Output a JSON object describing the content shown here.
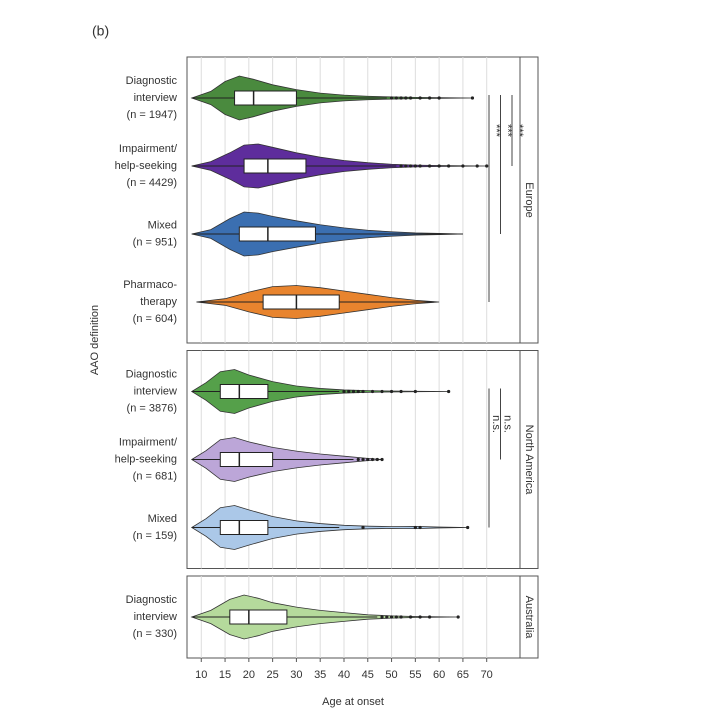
{
  "chart_data": {
    "type": "violin",
    "panel_label": "(b)",
    "y_label": "AAO definition",
    "x_label": "Age at onset",
    "xlim": [
      7,
      77
    ],
    "xticks": [
      10,
      15,
      20,
      25,
      30,
      35,
      40,
      45,
      50,
      55,
      60,
      65,
      70
    ],
    "grid": true,
    "facets": [
      {
        "name": "Europe",
        "groups": [
          {
            "label": [
              "Diagnostic",
              "interview"
            ],
            "n_label": "(n = 1947)",
            "color": "#4a8a3e",
            "low": 8,
            "q1": 17,
            "median": 21,
            "q3": 30,
            "high": 49,
            "outliers": [
              50,
              51,
              52,
              53,
              54,
              56,
              58,
              60,
              67
            ],
            "density_x": [
              8,
              12,
              15,
              18,
              21,
              25,
              30,
              35,
              40,
              45,
              50,
              55,
              60,
              67
            ],
            "density": [
              0,
              0.3,
              0.75,
              1,
              0.85,
              0.6,
              0.38,
              0.22,
              0.13,
              0.08,
              0.05,
              0.03,
              0.015,
              0
            ]
          },
          {
            "label": [
              "Impairment/",
              "help-seeking"
            ],
            "n_label": "(n = 4429)",
            "color": "#5e2d9c",
            "low": 8,
            "q1": 19,
            "median": 24,
            "q3": 32,
            "high": 51,
            "outliers": [
              52,
              53,
              54,
              55,
              56,
              58,
              60,
              62,
              65,
              68,
              70
            ],
            "density_x": [
              8,
              12,
              16,
              19,
              22,
              25,
              30,
              35,
              40,
              45,
              50,
              55,
              60,
              70
            ],
            "density": [
              0,
              0.2,
              0.6,
              0.95,
              1,
              0.85,
              0.6,
              0.4,
              0.25,
              0.15,
              0.08,
              0.04,
              0.02,
              0
            ]
          },
          {
            "label": [
              "Mixed"
            ],
            "n_label": "(n = 951)",
            "color": "#3b6fb1",
            "low": 8,
            "q1": 18,
            "median": 24,
            "q3": 34,
            "high": 65,
            "outliers": [],
            "density_x": [
              8,
              12,
              16,
              19,
              22,
              25,
              30,
              35,
              40,
              45,
              50,
              55,
              60,
              65
            ],
            "density": [
              0,
              0.2,
              0.7,
              1,
              0.95,
              0.8,
              0.6,
              0.42,
              0.28,
              0.17,
              0.1,
              0.05,
              0.03,
              0
            ]
          },
          {
            "label": [
              "Pharmaco-",
              "therapy"
            ],
            "n_label": "(n = 604)",
            "color": "#e8842e",
            "low": 9,
            "q1": 23,
            "median": 30,
            "q3": 39,
            "high": 59,
            "outliers": [],
            "density_x": [
              9,
              15,
              20,
              25,
              30,
              35,
              40,
              45,
              50,
              55,
              60
            ],
            "density": [
              0,
              0.15,
              0.45,
              0.7,
              0.75,
              0.65,
              0.5,
              0.35,
              0.2,
              0.08,
              0
            ]
          }
        ],
        "comparisons": [
          {
            "from": 0,
            "to": 1,
            "label": "***"
          },
          {
            "from": 0,
            "to": 2,
            "label": "***"
          },
          {
            "from": 0,
            "to": 3,
            "label": "***"
          }
        ]
      },
      {
        "name": "North America",
        "groups": [
          {
            "label": [
              "Diagnostic",
              "interview"
            ],
            "n_label": "(n = 3876)",
            "color": "#55a04a",
            "low": 8,
            "q1": 14,
            "median": 18,
            "q3": 24,
            "high": 39,
            "outliers": [
              40,
              41,
              42,
              43,
              44,
              46,
              48,
              50,
              52,
              55,
              62
            ],
            "density_x": [
              8,
              11,
              14,
              17,
              20,
              25,
              30,
              35,
              40,
              45,
              50,
              55,
              62
            ],
            "density": [
              0,
              0.4,
              0.9,
              1,
              0.75,
              0.45,
              0.25,
              0.14,
              0.07,
              0.04,
              0.02,
              0.01,
              0
            ]
          },
          {
            "label": [
              "Impairment/",
              "help-seeking"
            ],
            "n_label": "(n = 681)",
            "color": "#bca6d8",
            "low": 8,
            "q1": 14,
            "median": 18,
            "q3": 25,
            "high": 42,
            "outliers": [
              43,
              44,
              45,
              46,
              47,
              48
            ],
            "density_x": [
              8,
              11,
              14,
              17,
              20,
              25,
              30,
              35,
              40,
              45,
              48
            ],
            "density": [
              0,
              0.4,
              0.9,
              1,
              0.8,
              0.55,
              0.38,
              0.25,
              0.15,
              0.05,
              0
            ]
          },
          {
            "label": [
              "Mixed"
            ],
            "n_label": "(n = 159)",
            "color": "#abc8e8",
            "low": 8,
            "q1": 14,
            "median": 18,
            "q3": 24,
            "high": 39,
            "outliers": [
              44,
              55,
              56,
              66
            ],
            "density_x": [
              8,
              11,
              14,
              17,
              20,
              25,
              30,
              35,
              40,
              45,
              50,
              55,
              60,
              66
            ],
            "density": [
              0,
              0.4,
              0.9,
              1,
              0.8,
              0.5,
              0.3,
              0.18,
              0.1,
              0.06,
              0.04,
              0.05,
              0.02,
              0
            ]
          }
        ],
        "comparisons": [
          {
            "from": 0,
            "to": 1,
            "label": "n.s."
          },
          {
            "from": 0,
            "to": 2,
            "label": "n.s."
          }
        ]
      },
      {
        "name": "Australia",
        "groups": [
          {
            "label": [
              "Diagnostic",
              "interview"
            ],
            "n_label": "(n = 330)",
            "color": "#b5da9c",
            "low": 8,
            "q1": 16,
            "median": 20,
            "q3": 28,
            "high": 47,
            "outliers": [
              48,
              49,
              50,
              51,
              52,
              54,
              56,
              58,
              64
            ],
            "density_x": [
              8,
              12,
              16,
              19,
              22,
              25,
              30,
              35,
              40,
              45,
              50,
              55,
              64
            ],
            "density": [
              0,
              0.3,
              0.8,
              1,
              0.85,
              0.65,
              0.45,
              0.3,
              0.2,
              0.1,
              0.05,
              0.02,
              0
            ]
          }
        ],
        "comparisons": []
      }
    ]
  }
}
